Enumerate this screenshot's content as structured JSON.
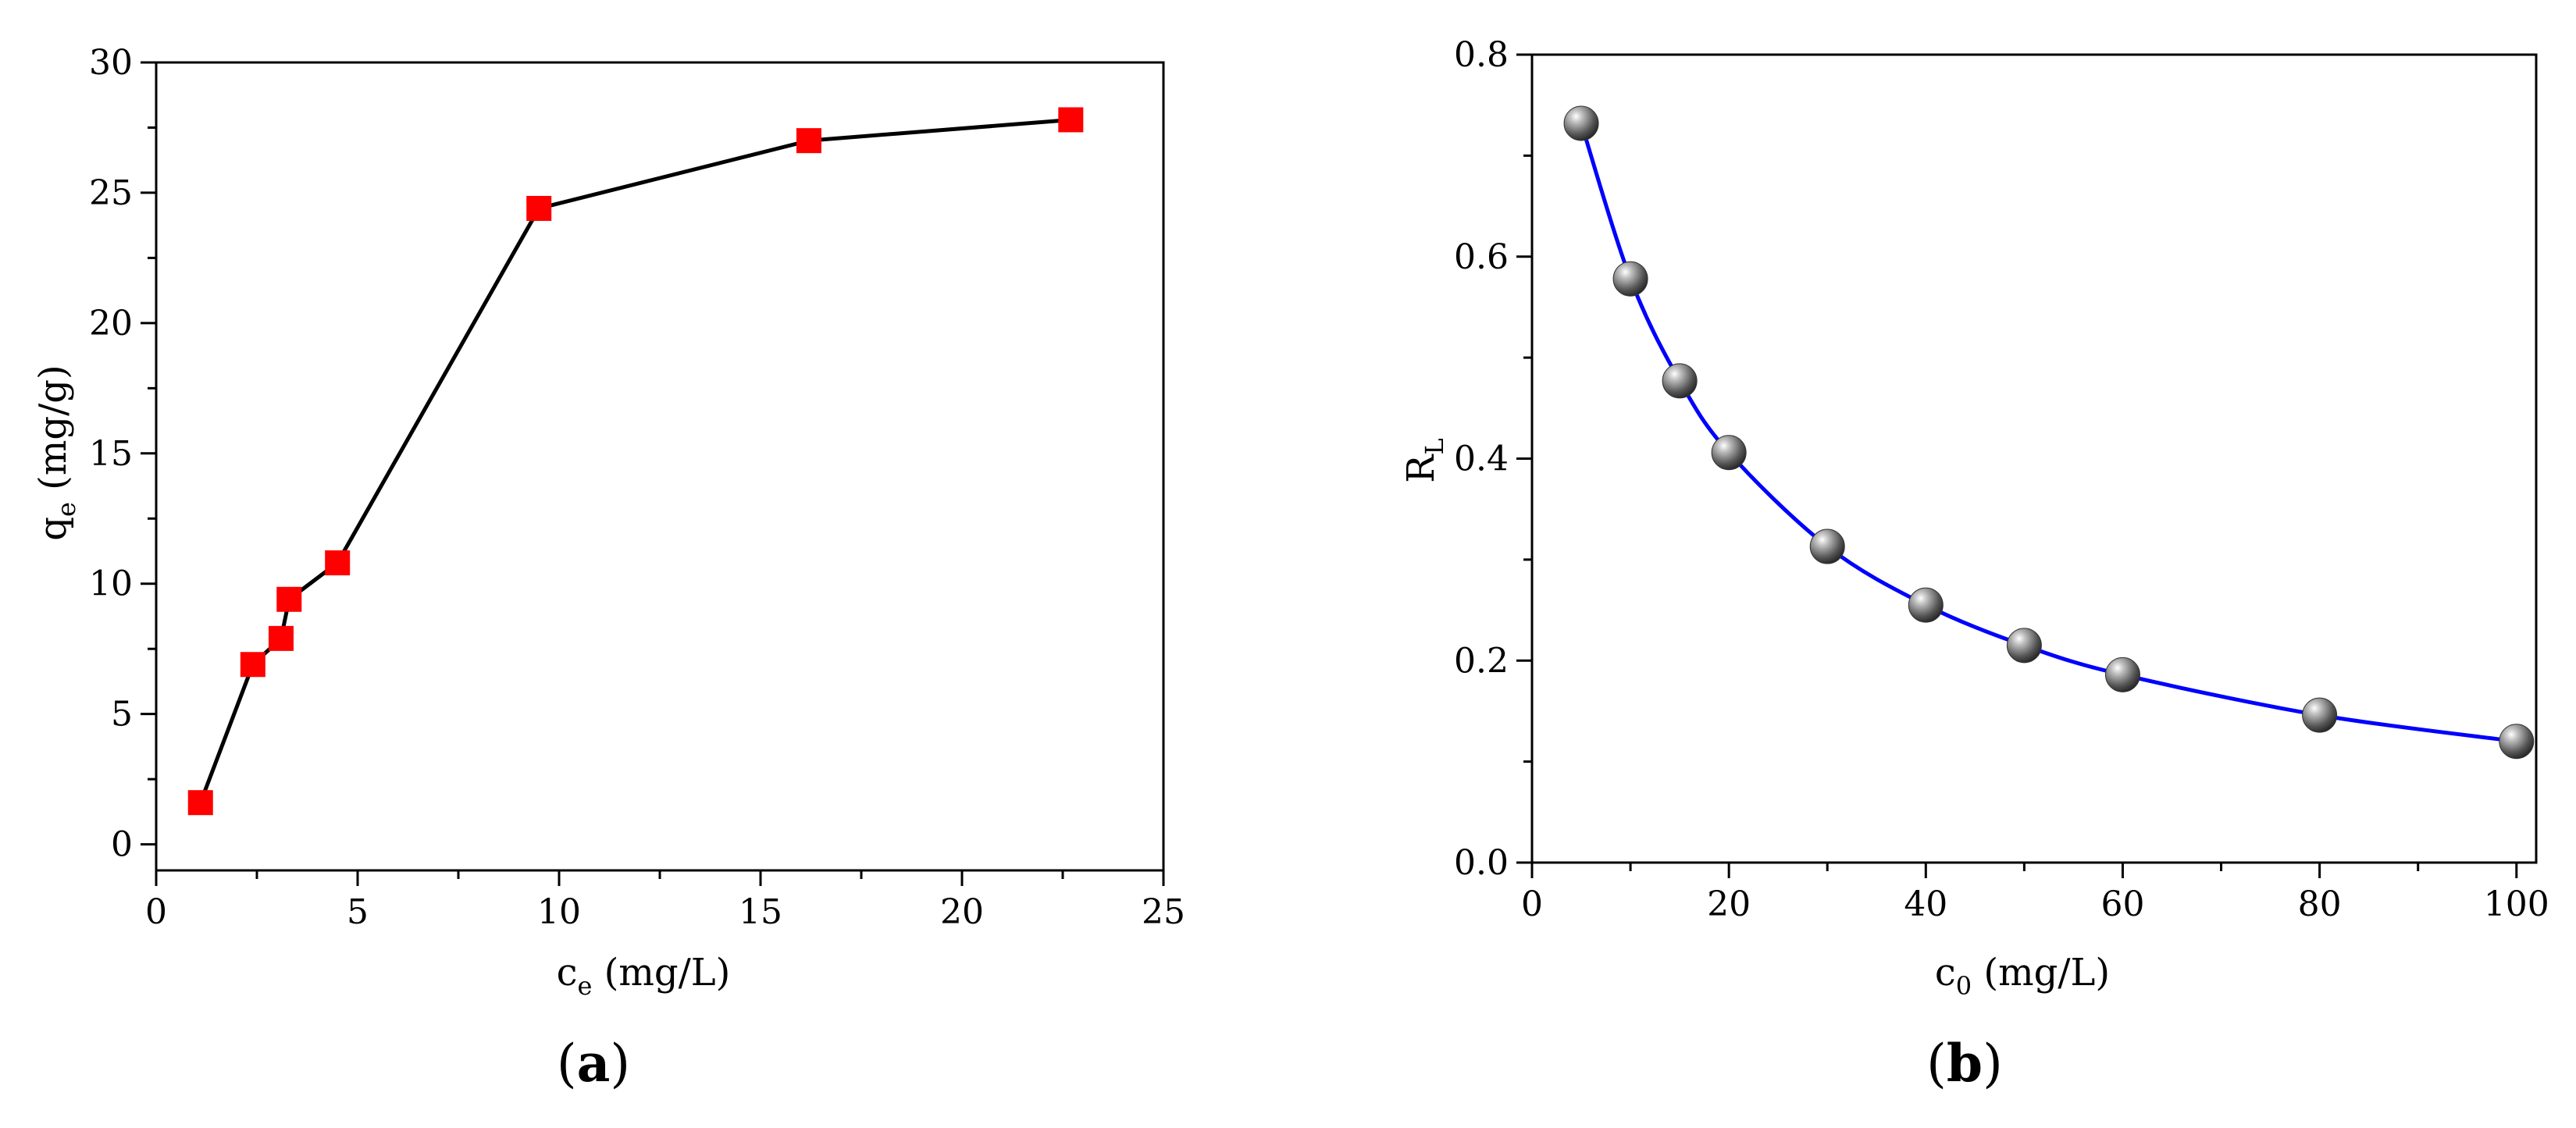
{
  "chart_data": [
    {
      "type": "line",
      "panel_label": "a",
      "title": "",
      "xlabel": {
        "main": "c",
        "sub": "e",
        "rest": " (mg/L)"
      },
      "ylabel": {
        "main": "q",
        "sub": "e",
        "rest": " (mg/g)"
      },
      "xlim": [
        0,
        25
      ],
      "ylim": [
        -1,
        30
      ],
      "x_ticks": [
        0,
        5,
        10,
        15,
        20,
        25
      ],
      "y_ticks": [
        0,
        5,
        10,
        15,
        20,
        25,
        30
      ],
      "grid": false,
      "series": [
        {
          "marker": "square",
          "color": "#ff0000",
          "line_color": "#000000",
          "points": [
            {
              "x": 1.1,
              "y": 1.6
            },
            {
              "x": 2.4,
              "y": 6.9
            },
            {
              "x": 3.1,
              "y": 7.9
            },
            {
              "x": 3.3,
              "y": 9.4
            },
            {
              "x": 4.5,
              "y": 10.8
            },
            {
              "x": 9.5,
              "y": 24.4
            },
            {
              "x": 16.2,
              "y": 27.0
            },
            {
              "x": 22.7,
              "y": 27.8
            }
          ]
        }
      ]
    },
    {
      "type": "line",
      "panel_label": "b",
      "title": "",
      "xlabel": {
        "main": "c",
        "sub": "0",
        "rest": " (mg/L)"
      },
      "ylabel": {
        "main": "R",
        "sub": "L",
        "rest": ""
      },
      "xlim": [
        0,
        102
      ],
      "ylim": [
        0,
        0.8
      ],
      "x_ticks": [
        0,
        20,
        40,
        60,
        80,
        100
      ],
      "y_ticks": [
        0.0,
        0.2,
        0.4,
        0.6,
        0.8
      ],
      "y_tick_labels": [
        "0.0",
        "0.2",
        "0.4",
        "0.6",
        "0.8"
      ],
      "grid": false,
      "series": [
        {
          "marker": "sphere",
          "color": "#666666",
          "line_color": "#0000ff",
          "points": [
            {
              "x": 5,
              "y": 0.732
            },
            {
              "x": 10,
              "y": 0.578
            },
            {
              "x": 15,
              "y": 0.477
            },
            {
              "x": 20,
              "y": 0.406
            },
            {
              "x": 30,
              "y": 0.313
            },
            {
              "x": 40,
              "y": 0.255
            },
            {
              "x": 50,
              "y": 0.215
            },
            {
              "x": 60,
              "y": 0.186
            },
            {
              "x": 80,
              "y": 0.146
            },
            {
              "x": 100,
              "y": 0.12
            }
          ]
        }
      ]
    }
  ]
}
